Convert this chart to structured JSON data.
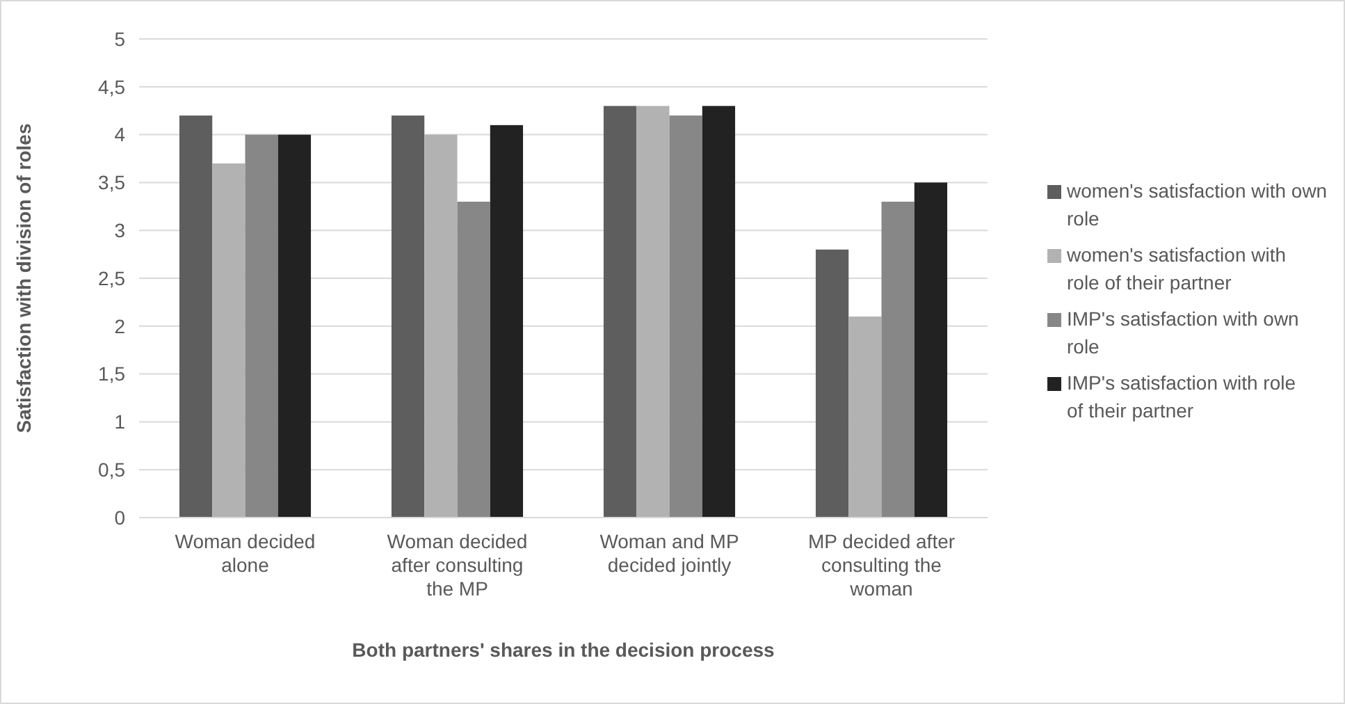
{
  "chart_data": {
    "type": "bar",
    "xlabel": "Both partners' shares in the decision process",
    "ylabel": "Satisfaction with division of roles",
    "categories": [
      "Woman decided alone",
      "Woman decided after consulting the MP",
      "Woman and MP decided jointly",
      "MP decided after consulting the woman"
    ],
    "series": [
      {
        "name": "women's satisfaction with own role",
        "color": "#5e5e5e",
        "values": [
          4.2,
          4.2,
          4.3,
          2.8
        ]
      },
      {
        "name": "women's satisfaction with role of their partner",
        "color": "#b2b2b2",
        "values": [
          3.7,
          4.0,
          4.3,
          2.1
        ]
      },
      {
        "name": "IMP's satisfaction with own role",
        "color": "#878787",
        "values": [
          4.0,
          3.3,
          4.2,
          3.3
        ]
      },
      {
        "name": "IMP's satisfaction with role of their partner",
        "color": "#222222",
        "values": [
          4.0,
          4.1,
          4.3,
          3.5
        ]
      }
    ],
    "ylim": [
      0,
      5
    ],
    "yticks": [
      0,
      {
        "value": 0.5,
        "label": "0,5"
      },
      1,
      {
        "value": 1.5,
        "label": "1,5"
      },
      2,
      {
        "value": 2.5,
        "label": "2,5"
      },
      3,
      {
        "value": 3.5,
        "label": "3,5"
      },
      4,
      {
        "value": 4.5,
        "label": "4,5"
      },
      5
    ],
    "grid": "y",
    "legend": "right"
  }
}
